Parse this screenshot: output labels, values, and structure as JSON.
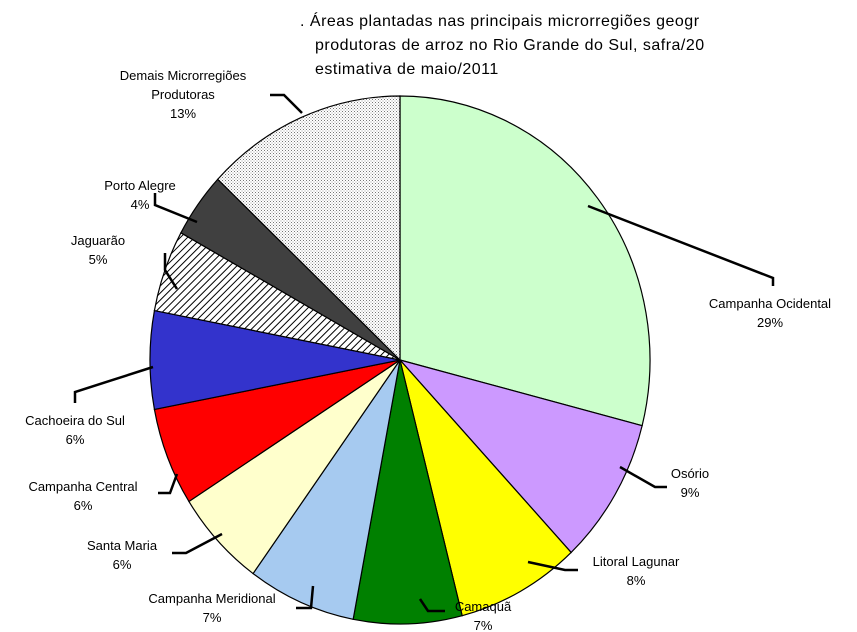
{
  "chart_data": {
    "type": "pie",
    "title_lines": [
      ". Áreas plantadas nas principais microrregiões geogr",
      "produtoras de arroz no Rio Grande do Sul, safra/20",
      "estimativa de maio/2011"
    ],
    "categories": [
      "Campanha Ocidental",
      "Osório",
      "Litoral Lagunar",
      "Camaquã",
      "Campanha Meridional",
      "Santa Maria",
      "Campanha Central",
      "Cachoeira do Sul",
      "Jaguarão",
      "Porto Alegre",
      "Demais Microrregiões Produtoras"
    ],
    "values": [
      29,
      9,
      8,
      7,
      7,
      6,
      6,
      6,
      5,
      4,
      13
    ],
    "value_labels": [
      "29%",
      "9%",
      "8%",
      "7%",
      "7%",
      "6%",
      "6%",
      "6%",
      "5%",
      "4%",
      "13%"
    ],
    "colors": [
      "#ccffcc",
      "#cc99ff",
      "#ffff00",
      "#008000",
      "#a6caf0",
      "#ffffcc",
      "#ff0000",
      "#3333cc",
      "#ffffff",
      "#404040",
      "#ffffff"
    ],
    "patterns": [
      null,
      null,
      null,
      null,
      null,
      null,
      null,
      null,
      "diagonal-hatch",
      null,
      "dots"
    ]
  }
}
